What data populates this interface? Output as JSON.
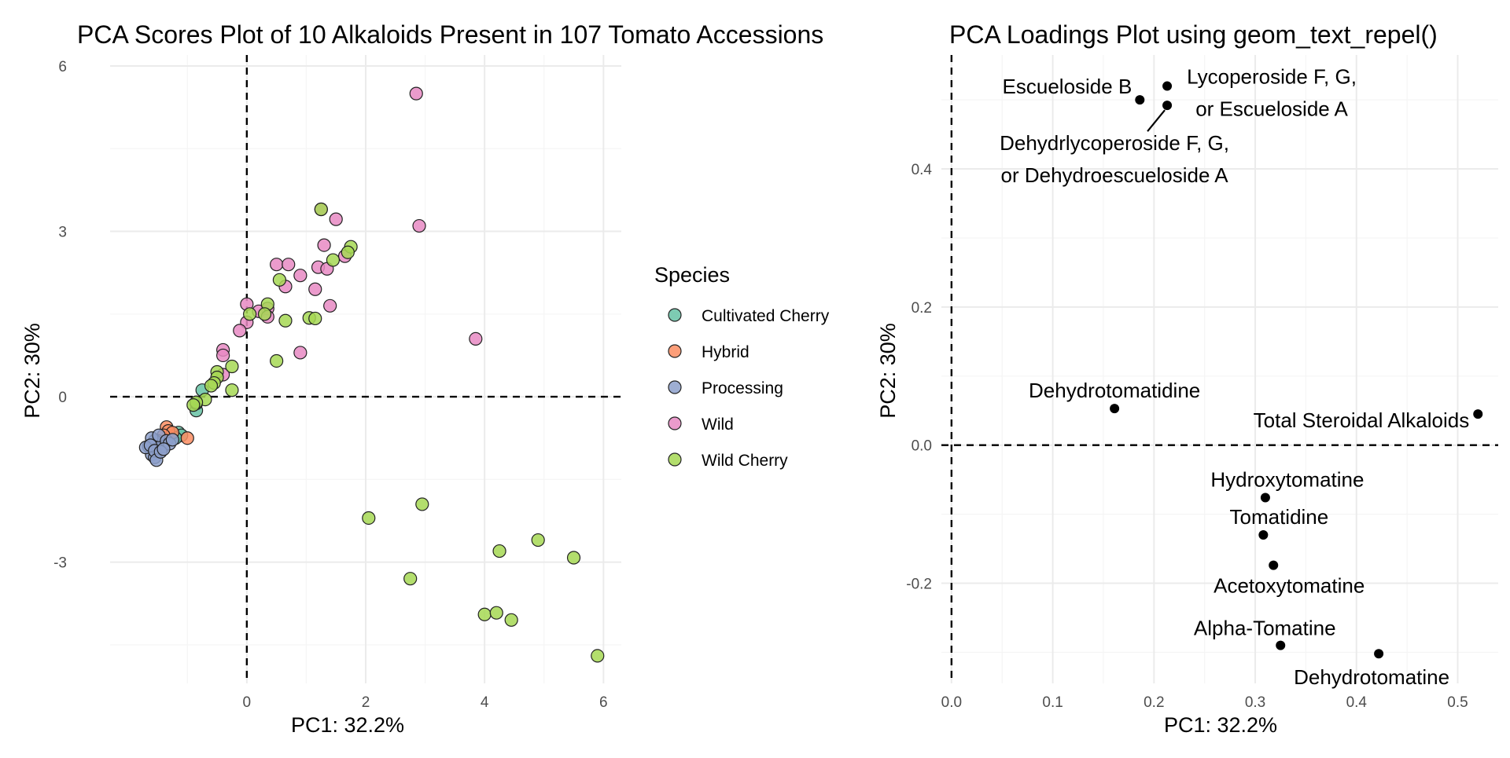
{
  "chart_data": [
    {
      "type": "scatter",
      "title": "PCA Scores Plot of 10 Alkaloids Present in 107 Tomato Accessions",
      "xlabel": "PC1: 32.2%",
      "ylabel": "PC2: 30%",
      "xlim": [
        -2.3,
        6.3
      ],
      "ylim": [
        -5.2,
        6.2
      ],
      "xticks": [
        0,
        2,
        4,
        6
      ],
      "yticks": [
        -3,
        0,
        3,
        6
      ],
      "xtick_labels": [
        "0",
        "2",
        "4",
        "6"
      ],
      "ytick_labels": [
        "-3",
        "0",
        "3",
        "6"
      ],
      "grid": true,
      "reference_lines": {
        "x": 0,
        "y": 0
      },
      "legend": {
        "title": "Species",
        "position": "right"
      },
      "series": [
        {
          "name": "Cultivated Cherry",
          "color": "#66c2a5",
          "x": [
            -1.15,
            -1.1,
            -1.2,
            -0.75,
            -0.85,
            -0.85
          ],
          "y": [
            -0.65,
            -0.7,
            -0.75,
            0.12,
            -0.25,
            -0.12
          ]
        },
        {
          "name": "Hybrid",
          "color": "#fc8d62",
          "x": [
            -1.0,
            -1.35,
            -1.32,
            -1.25,
            -1.4,
            -1.5
          ],
          "y": [
            -0.75,
            -0.55,
            -0.62,
            -0.65,
            -0.7,
            -0.8
          ]
        },
        {
          "name": "Processing",
          "color": "#8da0cb",
          "x": [
            -1.65,
            -1.6,
            -1.55,
            -1.5,
            -1.45,
            -1.4,
            -1.55,
            -1.6,
            -1.48,
            -1.35,
            -1.3,
            -1.25,
            -1.7,
            -1.62,
            -1.55,
            -1.52,
            -1.45,
            -1.4
          ],
          "y": [
            -0.9,
            -1.05,
            -1.1,
            -0.95,
            -0.85,
            -0.9,
            -0.8,
            -0.75,
            -0.7,
            -0.8,
            -0.85,
            -0.78,
            -0.92,
            -0.88,
            -0.98,
            -1.15,
            -1.0,
            -0.95
          ]
        },
        {
          "name": "Wild",
          "color": "#e78ac3",
          "x": [
            2.85,
            2.9,
            3.85,
            1.25,
            1.5,
            1.3,
            1.65,
            1.2,
            1.35,
            0.5,
            0.7,
            0.65,
            0.9,
            1.15,
            1.4,
            0.0,
            0.35,
            0.2,
            0.35,
            0.0,
            -0.12,
            -0.4,
            -0.4,
            -0.4,
            0.9
          ],
          "y": [
            5.5,
            3.1,
            1.05,
            3.4,
            3.22,
            2.75,
            2.55,
            2.35,
            2.32,
            2.4,
            2.4,
            2.0,
            2.2,
            1.95,
            1.65,
            1.68,
            1.6,
            1.55,
            1.45,
            1.35,
            1.2,
            0.85,
            0.75,
            0.4,
            0.8
          ]
        },
        {
          "name": "Wild Cherry",
          "color": "#a6d854",
          "x": [
            1.25,
            1.75,
            1.7,
            1.45,
            0.55,
            0.35,
            0.3,
            0.05,
            0.65,
            1.05,
            1.15,
            0.5,
            -0.25,
            -0.25,
            -0.5,
            -0.5,
            -0.55,
            -0.6,
            -0.7,
            -0.85,
            -0.9,
            2.05,
            2.95,
            4.9,
            4.25,
            5.5,
            2.75,
            4.0,
            4.2,
            4.45,
            5.9
          ],
          "y": [
            3.4,
            2.72,
            2.62,
            2.48,
            2.12,
            1.68,
            1.5,
            1.5,
            1.38,
            1.43,
            1.42,
            0.65,
            0.55,
            0.12,
            0.45,
            0.35,
            0.25,
            0.2,
            -0.05,
            -0.1,
            -0.15,
            -2.2,
            -1.95,
            -2.6,
            -2.8,
            -2.92,
            -3.3,
            -3.95,
            -3.92,
            -4.05,
            -4.7
          ]
        }
      ]
    },
    {
      "type": "scatter",
      "title": "PCA Loadings Plot using geom_text_repel()",
      "xlabel": "PC1: 32.2%",
      "ylabel": "PC2: 30%",
      "xlim": [
        -0.01,
        0.54
      ],
      "ylim": [
        -0.345,
        0.565
      ],
      "xticks": [
        0.0,
        0.1,
        0.2,
        0.3,
        0.4,
        0.5
      ],
      "yticks": [
        -0.2,
        0.0,
        0.2,
        0.4
      ],
      "xtick_labels": [
        "0.0",
        "0.1",
        "0.2",
        "0.3",
        "0.4",
        "0.5"
      ],
      "ytick_labels": [
        "-0.2",
        "0.0",
        "0.2",
        "0.4"
      ],
      "grid": true,
      "reference_lines": {
        "x": 0,
        "y": 0
      },
      "points": [
        {
          "label": "Escueloside B",
          "x": 0.186,
          "y": 0.5
        },
        {
          "label": "Lycoperoside F, G,\nor Escueloside A",
          "x": 0.213,
          "y": 0.52
        },
        {
          "label": "Dehydrlycoperoside F, G,\nor Dehydroescueloside A",
          "x": 0.213,
          "y": 0.492
        },
        {
          "label": "Dehydrotomatidine",
          "x": 0.161,
          "y": 0.053
        },
        {
          "label": "Total Steroidal Alkaloids",
          "x": 0.52,
          "y": 0.045
        },
        {
          "label": "Hydroxytomatine",
          "x": 0.31,
          "y": -0.076
        },
        {
          "label": "Tomatidine",
          "x": 0.308,
          "y": -0.13
        },
        {
          "label": "Acetoxytomatine",
          "x": 0.318,
          "y": -0.174
        },
        {
          "label": "Alpha-Tomatine",
          "x": 0.325,
          "y": -0.29
        },
        {
          "label": "Dehydrotomatine",
          "x": 0.422,
          "y": -0.302
        }
      ]
    }
  ]
}
